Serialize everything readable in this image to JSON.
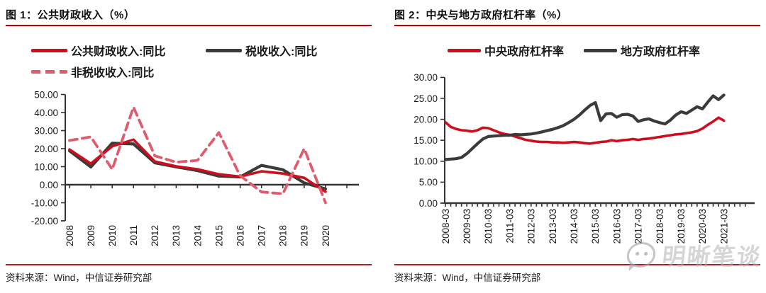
{
  "colors": {
    "accent_red": "#CE0E1E",
    "dark_line": "#3B3B3B",
    "dashed_pink": "#DE5C6E",
    "title_rule": "#C00000",
    "source_rule": "#B01E23"
  },
  "watermark": {
    "icon": "wechat-bubble-icon",
    "text": "明晰笔谈"
  },
  "figure1": {
    "title": "图 1：公共财政收入（%）",
    "source": "资料来源：Wind，中信证券研究部",
    "chart_data": {
      "type": "line",
      "legend_position": "top",
      "grid": false,
      "ylim": [
        -20,
        50
      ],
      "ytick_labels": [
        "50.00",
        "40.00",
        "30.00",
        "20.00",
        "10.00",
        "0.00",
        "-10.00",
        "-20.00"
      ],
      "ytick_values": [
        50,
        40,
        30,
        20,
        10,
        0,
        -10,
        -20
      ],
      "x_tick_labels": [
        "2008",
        "2009",
        "2010",
        "2011",
        "2012",
        "2013",
        "2014",
        "2015",
        "2016",
        "2017",
        "2018",
        "2019",
        "2020"
      ],
      "series": [
        {
          "name": "税收收入:同比",
          "color": "dark_line",
          "style": "solid",
          "width": 4.2,
          "values": [
            18.8,
            9.8,
            23.0,
            22.6,
            12.1,
            9.9,
            7.8,
            4.8,
            4.3,
            10.7,
            8.3,
            1.0,
            -2.3
          ]
        },
        {
          "name": "公共财政收入:同比",
          "color": "accent_red",
          "style": "solid",
          "width": 3.6,
          "values": [
            19.5,
            11.7,
            21.3,
            25.0,
            12.9,
            10.2,
            8.6,
            5.8,
            4.5,
            7.4,
            6.2,
            3.8,
            -3.9
          ]
        },
        {
          "name": "非税收收入:同比",
          "color": "dashed_pink",
          "style": "dashed",
          "width": 3.8,
          "values": [
            24.5,
            26.5,
            8.5,
            43.0,
            16.0,
            12.5,
            13.5,
            28.9,
            5.0,
            -4.0,
            -5.0,
            20.0,
            -10.0
          ]
        }
      ]
    }
  },
  "figure2": {
    "title": "图 2：中央与地方政府杠杆率（%）",
    "source": "资料来源：Wind，中信证券研究部",
    "chart_data": {
      "type": "line",
      "legend_position": "top",
      "grid": false,
      "frequency": "quarterly",
      "ylim": [
        0,
        30
      ],
      "ytick_labels": [
        "30.00",
        "25.00",
        "20.00",
        "15.00",
        "10.00",
        "5.00",
        "0.00"
      ],
      "ytick_values": [
        30,
        25,
        20,
        15,
        10,
        5,
        0
      ],
      "x_tick_labels": [
        "2008-03",
        "2009-03",
        "2010-03",
        "2011-03",
        "2012-03",
        "2013-03",
        "2014-03",
        "2015-03",
        "2016-03",
        "2017-03",
        "2018-03",
        "2019-03",
        "2020-03",
        "2021-03"
      ],
      "quarters_per_labeled_tick": 4,
      "series": [
        {
          "name": "中央政府杠杆率",
          "color": "accent_red",
          "style": "solid",
          "width": 3.6,
          "values": [
            19.3,
            18.2,
            17.7,
            17.4,
            17.3,
            17.1,
            17.4,
            18.0,
            17.9,
            17.4,
            16.9,
            16.5,
            16.3,
            15.9,
            15.5,
            15.1,
            14.9,
            14.7,
            14.6,
            14.6,
            14.5,
            14.5,
            14.4,
            14.5,
            14.6,
            14.5,
            14.3,
            14.2,
            14.4,
            14.6,
            14.7,
            15.0,
            14.8,
            15.0,
            15.1,
            15.3,
            15.1,
            15.3,
            15.4,
            15.6,
            15.8,
            16.0,
            16.2,
            16.4,
            16.5,
            16.7,
            16.9,
            17.2,
            17.8,
            18.7,
            19.5,
            20.4,
            19.7
          ]
        },
        {
          "name": "地方政府杠杆率",
          "color": "dark_line",
          "style": "solid",
          "width": 4.2,
          "values": [
            10.4,
            10.5,
            10.6,
            10.9,
            11.8,
            13.0,
            14.2,
            15.3,
            15.9,
            16.0,
            16.1,
            16.2,
            16.2,
            16.4,
            16.3,
            16.4,
            16.5,
            16.7,
            17.0,
            17.3,
            17.6,
            18.0,
            18.5,
            19.2,
            20.0,
            21.0,
            22.2,
            23.3,
            24.0,
            19.7,
            21.3,
            21.4,
            20.5,
            21.1,
            21.2,
            20.8,
            19.5,
            19.9,
            20.1,
            19.6,
            19.2,
            18.9,
            19.8,
            21.0,
            21.8,
            21.4,
            22.2,
            23.0,
            22.5,
            24.1,
            25.6,
            24.7,
            25.8
          ]
        }
      ]
    }
  }
}
